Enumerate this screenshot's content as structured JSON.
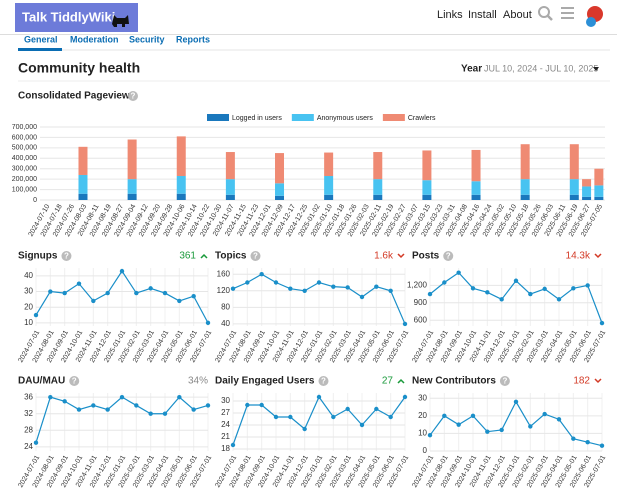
{
  "header": {
    "logo": "Talk TiddlyWiki",
    "links": [
      "Links",
      "Install",
      "About"
    ]
  },
  "tabs": [
    "General",
    "Moderation",
    "Security",
    "Reports"
  ],
  "title": "Community health",
  "period": {
    "label": "Year",
    "range": "JUL 10, 2024 - JUL 10, 2025"
  },
  "chart_data": [
    {
      "type": "bar",
      "stacked": true,
      "title": "Consolidated Pageviews",
      "legend": "top",
      "grid": true,
      "categories": [
        "2024-07-10",
        "2024-07-18",
        "2024-07-26",
        "2024-08-03",
        "2024-08-11",
        "2024-08-19",
        "2024-08-27",
        "2024-09-04",
        "2024-09-12",
        "2024-09-20",
        "2024-09-28",
        "2024-10-06",
        "2024-10-14",
        "2024-10-22",
        "2024-10-30",
        "2024-11-07",
        "2024-11-15",
        "2024-11-23",
        "2024-12-01",
        "2024-12-09",
        "2024-12-17",
        "2024-12-25",
        "2025-01-02",
        "2025-01-10",
        "2025-01-18",
        "2025-01-26",
        "2025-02-03",
        "2025-02-11",
        "2025-02-19",
        "2025-02-27",
        "2025-03-07",
        "2025-03-15",
        "2025-03-23",
        "2025-03-31",
        "2025-04-08",
        "2025-04-16",
        "2025-04-24",
        "2025-05-02",
        "2025-05-10",
        "2025-05-18",
        "2025-05-26",
        "2025-06-03",
        "2025-06-11",
        "2025-06-19",
        "2025-06-27",
        "2025-07-05"
      ],
      "series": [
        {
          "name": "Logged in users",
          "color": "#1a78bd",
          "values": [
            null,
            null,
            null,
            60000,
            null,
            null,
            null,
            60000,
            null,
            null,
            null,
            60000,
            null,
            null,
            null,
            50000,
            null,
            null,
            null,
            40000,
            null,
            null,
            null,
            50000,
            null,
            null,
            null,
            50000,
            null,
            null,
            null,
            50000,
            null,
            null,
            null,
            50000,
            null,
            null,
            null,
            50000,
            null,
            null,
            null,
            50000,
            30000,
            30000
          ]
        },
        {
          "name": "Anonymous users",
          "color": "#48c3f1",
          "values": [
            null,
            null,
            null,
            180000,
            null,
            null,
            null,
            140000,
            null,
            null,
            null,
            170000,
            null,
            null,
            null,
            150000,
            null,
            null,
            null,
            120000,
            null,
            null,
            null,
            180000,
            null,
            null,
            null,
            150000,
            null,
            null,
            null,
            140000,
            null,
            null,
            null,
            130000,
            null,
            null,
            null,
            150000,
            null,
            null,
            null,
            150000,
            100000,
            110000
          ]
        },
        {
          "name": "Crawlers",
          "color": "#ef8a73",
          "values": [
            null,
            null,
            null,
            270000,
            null,
            null,
            null,
            380000,
            null,
            null,
            null,
            380000,
            null,
            null,
            null,
            260000,
            null,
            null,
            null,
            290000,
            null,
            null,
            null,
            225000,
            null,
            null,
            null,
            260000,
            null,
            null,
            null,
            285000,
            null,
            null,
            null,
            300000,
            null,
            null,
            null,
            335000,
            null,
            null,
            null,
            335000,
            70000,
            160000
          ]
        }
      ],
      "ylim": [
        0,
        700000
      ],
      "yticks": [
        0,
        {
          "value": 100000,
          "label": "100,000"
        },
        {
          "value": 200000,
          "label": "200,000"
        },
        {
          "value": 300000,
          "label": "300,000"
        },
        {
          "value": 400000,
          "label": "400,000"
        },
        {
          "value": 500000,
          "label": "500,000"
        },
        {
          "value": 600000,
          "label": "600,000"
        },
        {
          "value": 700000,
          "label": "700,000"
        }
      ]
    },
    {
      "type": "line",
      "title": "Signups",
      "summary": "361",
      "trend": "up",
      "color": "#1a8fc9",
      "categories": [
        "2024-07-01",
        "2024-08-01",
        "2024-09-01",
        "2024-10-01",
        "2024-11-01",
        "2024-12-01",
        "2025-01-01",
        "2025-02-01",
        "2025-03-01",
        "2025-04-01",
        "2025-05-01",
        "2025-06-01",
        "2025-07-01"
      ],
      "values": [
        15,
        30,
        29,
        35,
        24,
        29,
        43,
        29,
        32,
        29,
        24,
        27,
        10
      ],
      "ylim": [
        8,
        45
      ],
      "yticks": [
        10,
        20,
        30,
        40
      ]
    },
    {
      "type": "line",
      "title": "Topics",
      "summary": "1.6k",
      "trend": "down",
      "color": "#1a8fc9",
      "categories": [
        "2024-07-01",
        "2024-08-01",
        "2024-09-01",
        "2024-10-01",
        "2024-11-01",
        "2024-12-01",
        "2025-01-01",
        "2025-02-01",
        "2025-03-01",
        "2025-04-01",
        "2025-05-01",
        "2025-06-01",
        "2025-07-01"
      ],
      "values": [
        125,
        140,
        160,
        140,
        125,
        120,
        140,
        130,
        128,
        105,
        130,
        120,
        40
      ],
      "ylim": [
        35,
        175
      ],
      "yticks": [
        40,
        80,
        120,
        160
      ]
    },
    {
      "type": "line",
      "title": "Posts",
      "summary": "14.3k",
      "trend": "down",
      "color": "#1a8fc9",
      "categories": [
        "2024-07-01",
        "2024-08-01",
        "2024-09-01",
        "2024-10-01",
        "2024-11-01",
        "2024-12-01",
        "2025-01-01",
        "2025-02-01",
        "2025-03-01",
        "2025-04-01",
        "2025-05-01",
        "2025-06-01",
        "2025-07-01"
      ],
      "values": [
        1050,
        1250,
        1420,
        1150,
        1080,
        960,
        1280,
        1050,
        1140,
        960,
        1150,
        1200,
        550
      ],
      "ylim": [
        500,
        1500
      ],
      "yticks": [
        600,
        900,
        {
          "value": 1200,
          "label": "1,200"
        }
      ]
    },
    {
      "type": "line",
      "title": "DAU/MAU",
      "summary": "34%",
      "trend": null,
      "color": "#1a8fc9",
      "categories": [
        "2024-07-01",
        "2024-08-01",
        "2024-09-01",
        "2024-10-01",
        "2024-11-01",
        "2024-12-01",
        "2025-01-01",
        "2025-02-01",
        "2025-03-01",
        "2025-04-01",
        "2025-05-01",
        "2025-06-01",
        "2025-07-01"
      ],
      "values": [
        25,
        36,
        35,
        33,
        34,
        33,
        36,
        34,
        32,
        32,
        36,
        33,
        34
      ],
      "ylim": [
        23,
        37
      ],
      "yticks": [
        24,
        28,
        32,
        36
      ]
    },
    {
      "type": "line",
      "title": "Daily Engaged Users",
      "summary": "27",
      "trend": "up",
      "color": "#1a8fc9",
      "categories": [
        "2024-07-01",
        "2024-08-01",
        "2024-09-01",
        "2024-10-01",
        "2024-11-01",
        "2024-12-01",
        "2025-01-01",
        "2025-02-01",
        "2025-03-01",
        "2025-04-01",
        "2025-05-01",
        "2025-06-01",
        "2025-07-01"
      ],
      "values": [
        19,
        29,
        29,
        26,
        26,
        23,
        31,
        26,
        28,
        24,
        28,
        26,
        31
      ],
      "ylim": [
        17.5,
        32
      ],
      "yticks": [
        18,
        21,
        24,
        27,
        30
      ]
    },
    {
      "type": "line",
      "title": "New Contributors",
      "summary": "182",
      "trend": "down",
      "color": "#1a8fc9",
      "categories": [
        "2024-07-01",
        "2024-08-01",
        "2024-09-01",
        "2024-10-01",
        "2024-11-01",
        "2024-12-01",
        "2025-01-01",
        "2025-02-01",
        "2025-03-01",
        "2025-04-01",
        "2025-05-01",
        "2025-06-01",
        "2025-07-01"
      ],
      "values": [
        9,
        20,
        15,
        20,
        11,
        12,
        28,
        14,
        21,
        18,
        7,
        5,
        3
      ],
      "ylim": [
        0,
        33
      ],
      "yticks": [
        0,
        10,
        20,
        30
      ]
    }
  ]
}
